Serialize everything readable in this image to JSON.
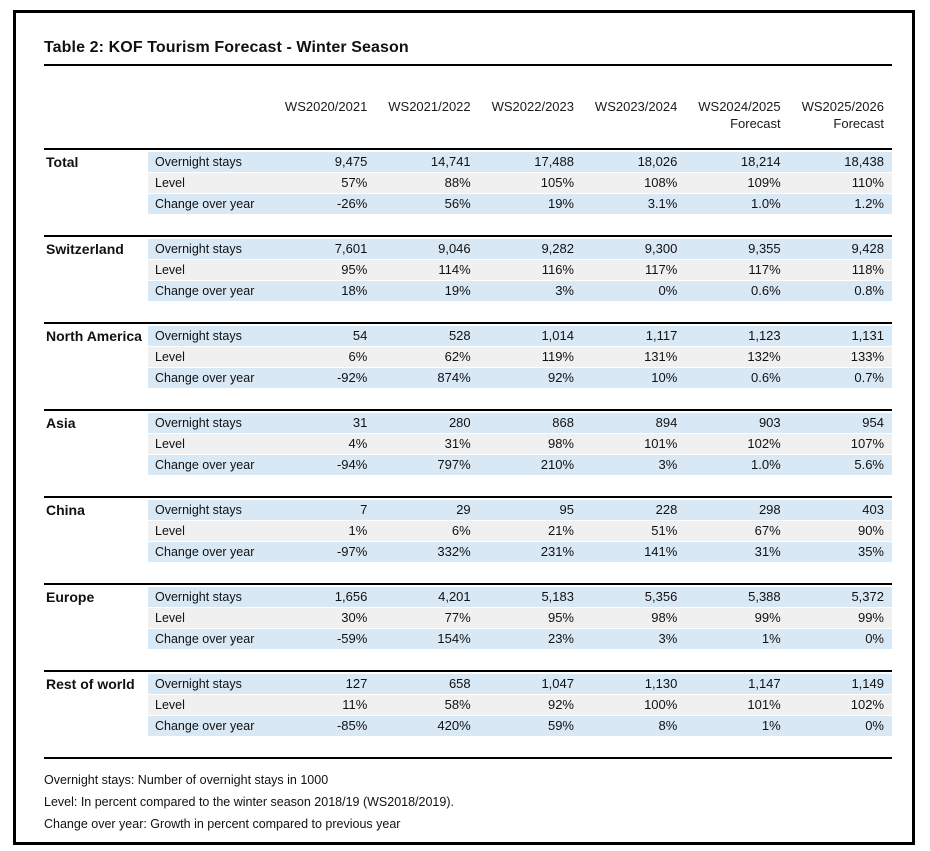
{
  "title": "Table 2: KOF Tourism Forecast - Winter Season",
  "table": {
    "columns": [
      {
        "label": "WS2020/2021",
        "sublabel": ""
      },
      {
        "label": "WS2021/2022",
        "sublabel": ""
      },
      {
        "label": "WS2022/2023",
        "sublabel": ""
      },
      {
        "label": "WS2023/2024",
        "sublabel": ""
      },
      {
        "label": "WS2024/2025",
        "sublabel": "Forecast"
      },
      {
        "label": "WS2025/2026",
        "sublabel": "Forecast"
      }
    ],
    "metrics": [
      "Overnight stays",
      "Level",
      "Change over year"
    ],
    "groups": [
      {
        "name": "Total",
        "rows": [
          [
            "9,475",
            "14,741",
            "17,488",
            "18,026",
            "18,214",
            "18,438"
          ],
          [
            "57%",
            "88%",
            "105%",
            "108%",
            "109%",
            "110%"
          ],
          [
            "-26%",
            "56%",
            "19%",
            "3.1%",
            "1.0%",
            "1.2%"
          ]
        ]
      },
      {
        "name": "Switzerland",
        "rows": [
          [
            "7,601",
            "9,046",
            "9,282",
            "9,300",
            "9,355",
            "9,428"
          ],
          [
            "95%",
            "114%",
            "116%",
            "117%",
            "117%",
            "118%"
          ],
          [
            "18%",
            "19%",
            "3%",
            "0%",
            "0.6%",
            "0.8%"
          ]
        ]
      },
      {
        "name": "North America",
        "rows": [
          [
            "54",
            "528",
            "1,014",
            "1,117",
            "1,123",
            "1,131"
          ],
          [
            "6%",
            "62%",
            "119%",
            "131%",
            "132%",
            "133%"
          ],
          [
            "-92%",
            "874%",
            "92%",
            "10%",
            "0.6%",
            "0.7%"
          ]
        ]
      },
      {
        "name": "Asia",
        "rows": [
          [
            "31",
            "280",
            "868",
            "894",
            "903",
            "954"
          ],
          [
            "4%",
            "31%",
            "98%",
            "101%",
            "102%",
            "107%"
          ],
          [
            "-94%",
            "797%",
            "210%",
            "3%",
            "1.0%",
            "5.6%"
          ]
        ]
      },
      {
        "name": "China",
        "rows": [
          [
            "7",
            "29",
            "95",
            "228",
            "298",
            "403"
          ],
          [
            "1%",
            "6%",
            "21%",
            "51%",
            "67%",
            "90%"
          ],
          [
            "-97%",
            "332%",
            "231%",
            "141%",
            "31%",
            "35%"
          ]
        ]
      },
      {
        "name": "Europe",
        "rows": [
          [
            "1,656",
            "4,201",
            "5,183",
            "5,356",
            "5,388",
            "5,372"
          ],
          [
            "30%",
            "77%",
            "95%",
            "98%",
            "99%",
            "99%"
          ],
          [
            "-59%",
            "154%",
            "23%",
            "3%",
            "1%",
            "0%"
          ]
        ]
      },
      {
        "name": "Rest of world",
        "rows": [
          [
            "127",
            "658",
            "1,047",
            "1,130",
            "1,147",
            "1,149"
          ],
          [
            "11%",
            "58%",
            "92%",
            "100%",
            "101%",
            "102%"
          ],
          [
            "-85%",
            "420%",
            "59%",
            "8%",
            "1%",
            "0%"
          ]
        ]
      }
    ]
  },
  "footnotes": [
    "Overnight stays: Number of overnight stays  in 1000",
    "Level: In percent compared to the winter season 2018/19 (WS2018/2019).",
    "Change over year: Growth in percent compared to previous year"
  ],
  "colors": {
    "band_blue": "#d9e8f5",
    "band_gray": "#f0f0f0",
    "line": "#000000"
  }
}
